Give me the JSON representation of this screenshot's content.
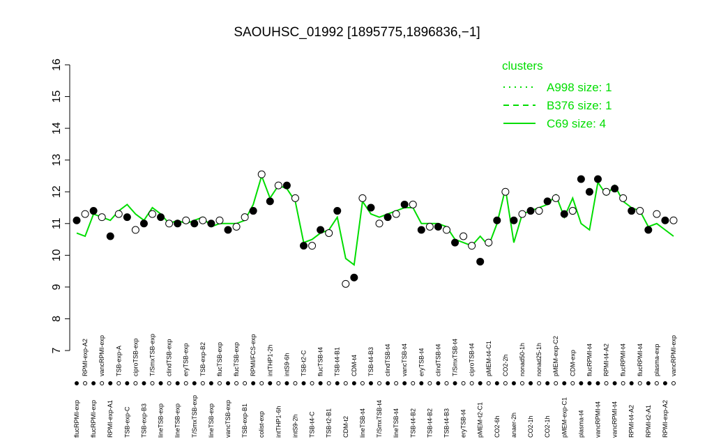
{
  "chart_data": {
    "type": "scatter-line",
    "title": "SAOUHSC_01992 [1895775,1896836,−1]",
    "categories": [
      "flucRPMI-exp",
      "RPMI-exp-A2",
      "flucRPMI-exp",
      "vancRPMI-exp",
      "RPMI-exp-A1",
      "TSB-exp-A",
      "TSB-exp-C",
      "ciproTSB-exp",
      "TSB-exp-B3",
      "T/SmxTSB-exp",
      "lineTSB-exp",
      "clindTSB-exp",
      "lineTSB-exp",
      "eryTSB-exp",
      "T/SmxTSB-exp",
      "TSB-exp-B2",
      "lineTSB-exp",
      "flucTSB-exp",
      "vancTSB-exp",
      "flucTSB-exp",
      "TSB-exp-B1",
      "RPMI/FCS-exp",
      "colist-exp",
      "intTHP1-2h",
      "intTHP1-6h",
      "intS9-6h",
      "intS9-2h",
      "TSB-t2-C",
      "TSB-t4-C",
      "flucTSB-t4",
      "TSB-t2-B1",
      "TSB-t4-B1",
      "CDM-t2",
      "CDM-t4",
      "lineTSB-t4",
      "TSB-t4-B3",
      "T/SmxTSB-t4",
      "clindTSB-t4",
      "lineTSB-t4",
      "vancTSB-t4",
      "TSB-t4-B2",
      "eryTSB-t4",
      "TSB-t4-B2",
      "clindTSB-t4",
      "TSB-t4-B3",
      "T/SmxTSB-t4",
      "eryTSB-t4",
      "ciproTSB-t4",
      "pMEM-t2-C1",
      "pMEM-t4-C1",
      "CO2-6h",
      "CO2-2h",
      "anaer-2h",
      "nonad50-1h",
      "CO2-1h",
      "nonad25-1h",
      "CO2-1h",
      "pMEM-exp-C2",
      "pMEM-exp-C1",
      "CDM-exp",
      "plasma-t4",
      "flucRPMI-t4",
      "vancRPMI-t4",
      "RPMI-t4-A2",
      "vancRPMI-t4",
      "flucRPMI-t4",
      "RPMI-t4-A2",
      "flucRPMI-t4",
      "RPMI-t2-A1",
      "plasma-exp",
      "RPMI-exp-A2",
      "vancRPMI-exp"
    ],
    "values": [
      11.1,
      11.3,
      11.4,
      11.2,
      10.6,
      11.3,
      11.2,
      10.8,
      11.0,
      11.3,
      11.2,
      11.0,
      11.0,
      11.1,
      11.0,
      11.1,
      11.0,
      11.1,
      10.8,
      10.9,
      11.2,
      11.4,
      12.55,
      11.7,
      12.2,
      12.2,
      11.8,
      10.3,
      10.3,
      10.8,
      10.7,
      11.4,
      9.1,
      9.3,
      11.8,
      11.5,
      11.0,
      11.2,
      11.3,
      11.6,
      11.6,
      10.8,
      10.9,
      10.9,
      10.8,
      10.4,
      10.6,
      10.3,
      9.8,
      10.4,
      11.1,
      12.0,
      11.1,
      11.3,
      11.4,
      11.4,
      11.7,
      11.8,
      11.3,
      11.4,
      12.4,
      12.0,
      12.4,
      12.0,
      12.1,
      11.8,
      11.4,
      11.4,
      10.8,
      11.3,
      11.1,
      11.1
    ],
    "marker_fills": [
      "#000",
      "#fff",
      "#000",
      "#fff",
      "#000",
      "#fff",
      "#000",
      "#fff",
      "#000",
      "#fff",
      "#000",
      "#fff",
      "#000",
      "#fff",
      "#000",
      "#fff",
      "#000",
      "#fff",
      "#000",
      "#fff",
      "#fff",
      "#000",
      "#fff",
      "#000",
      "#fff",
      "#000",
      "#fff",
      "#000",
      "#fff",
      "#000",
      "#fff",
      "#000",
      "#fff",
      "#000",
      "#fff",
      "#000",
      "#fff",
      "#000",
      "#fff",
      "#000",
      "#fff",
      "#000",
      "#fff",
      "#000",
      "#fff",
      "#000",
      "#fff",
      "#fff",
      "#000",
      "#fff",
      "#000",
      "#fff",
      "#000",
      "#fff",
      "#000",
      "#fff",
      "#000",
      "#fff",
      "#000",
      "#fff",
      "#000",
      "#000",
      "#000",
      "#fff",
      "#000",
      "#fff",
      "#000",
      "#fff",
      "#000",
      "#fff",
      "#000",
      "#fff"
    ],
    "line": {
      "color": "#00dd00",
      "values": [
        10.7,
        10.6,
        11.3,
        11.2,
        11.1,
        11.4,
        11.6,
        11.3,
        11.1,
        11.5,
        11.3,
        11.0,
        11.1,
        11.0,
        11.1,
        11.2,
        10.9,
        11.0,
        11.0,
        11.0,
        11.1,
        11.6,
        12.5,
        11.8,
        12.2,
        12.1,
        11.7,
        10.4,
        10.5,
        10.7,
        10.8,
        11.2,
        9.9,
        9.7,
        11.7,
        11.3,
        11.2,
        11.3,
        11.4,
        11.5,
        11.5,
        11.0,
        11.0,
        11.0,
        10.9,
        10.5,
        10.4,
        10.3,
        10.6,
        10.3,
        11.0,
        12.1,
        10.4,
        11.3,
        11.4,
        11.5,
        11.6,
        11.9,
        11.2,
        11.8,
        11.0,
        10.8,
        12.3,
        11.9,
        12.2,
        11.7,
        11.5,
        11.4,
        10.9,
        11.0,
        10.8,
        10.6
      ]
    },
    "legend": {
      "title": "clusters",
      "color": "#00dd00",
      "entries": [
        {
          "name": "A998 size: 1",
          "dash": "dotted"
        },
        {
          "name": "B376 size: 1",
          "dash": "dashed"
        },
        {
          "name": "C69 size: 4",
          "dash": "solid"
        }
      ]
    },
    "ylim": [
      7,
      16
    ],
    "yticks": [
      7,
      8,
      9,
      10,
      11,
      12,
      13,
      14,
      15,
      16
    ]
  }
}
